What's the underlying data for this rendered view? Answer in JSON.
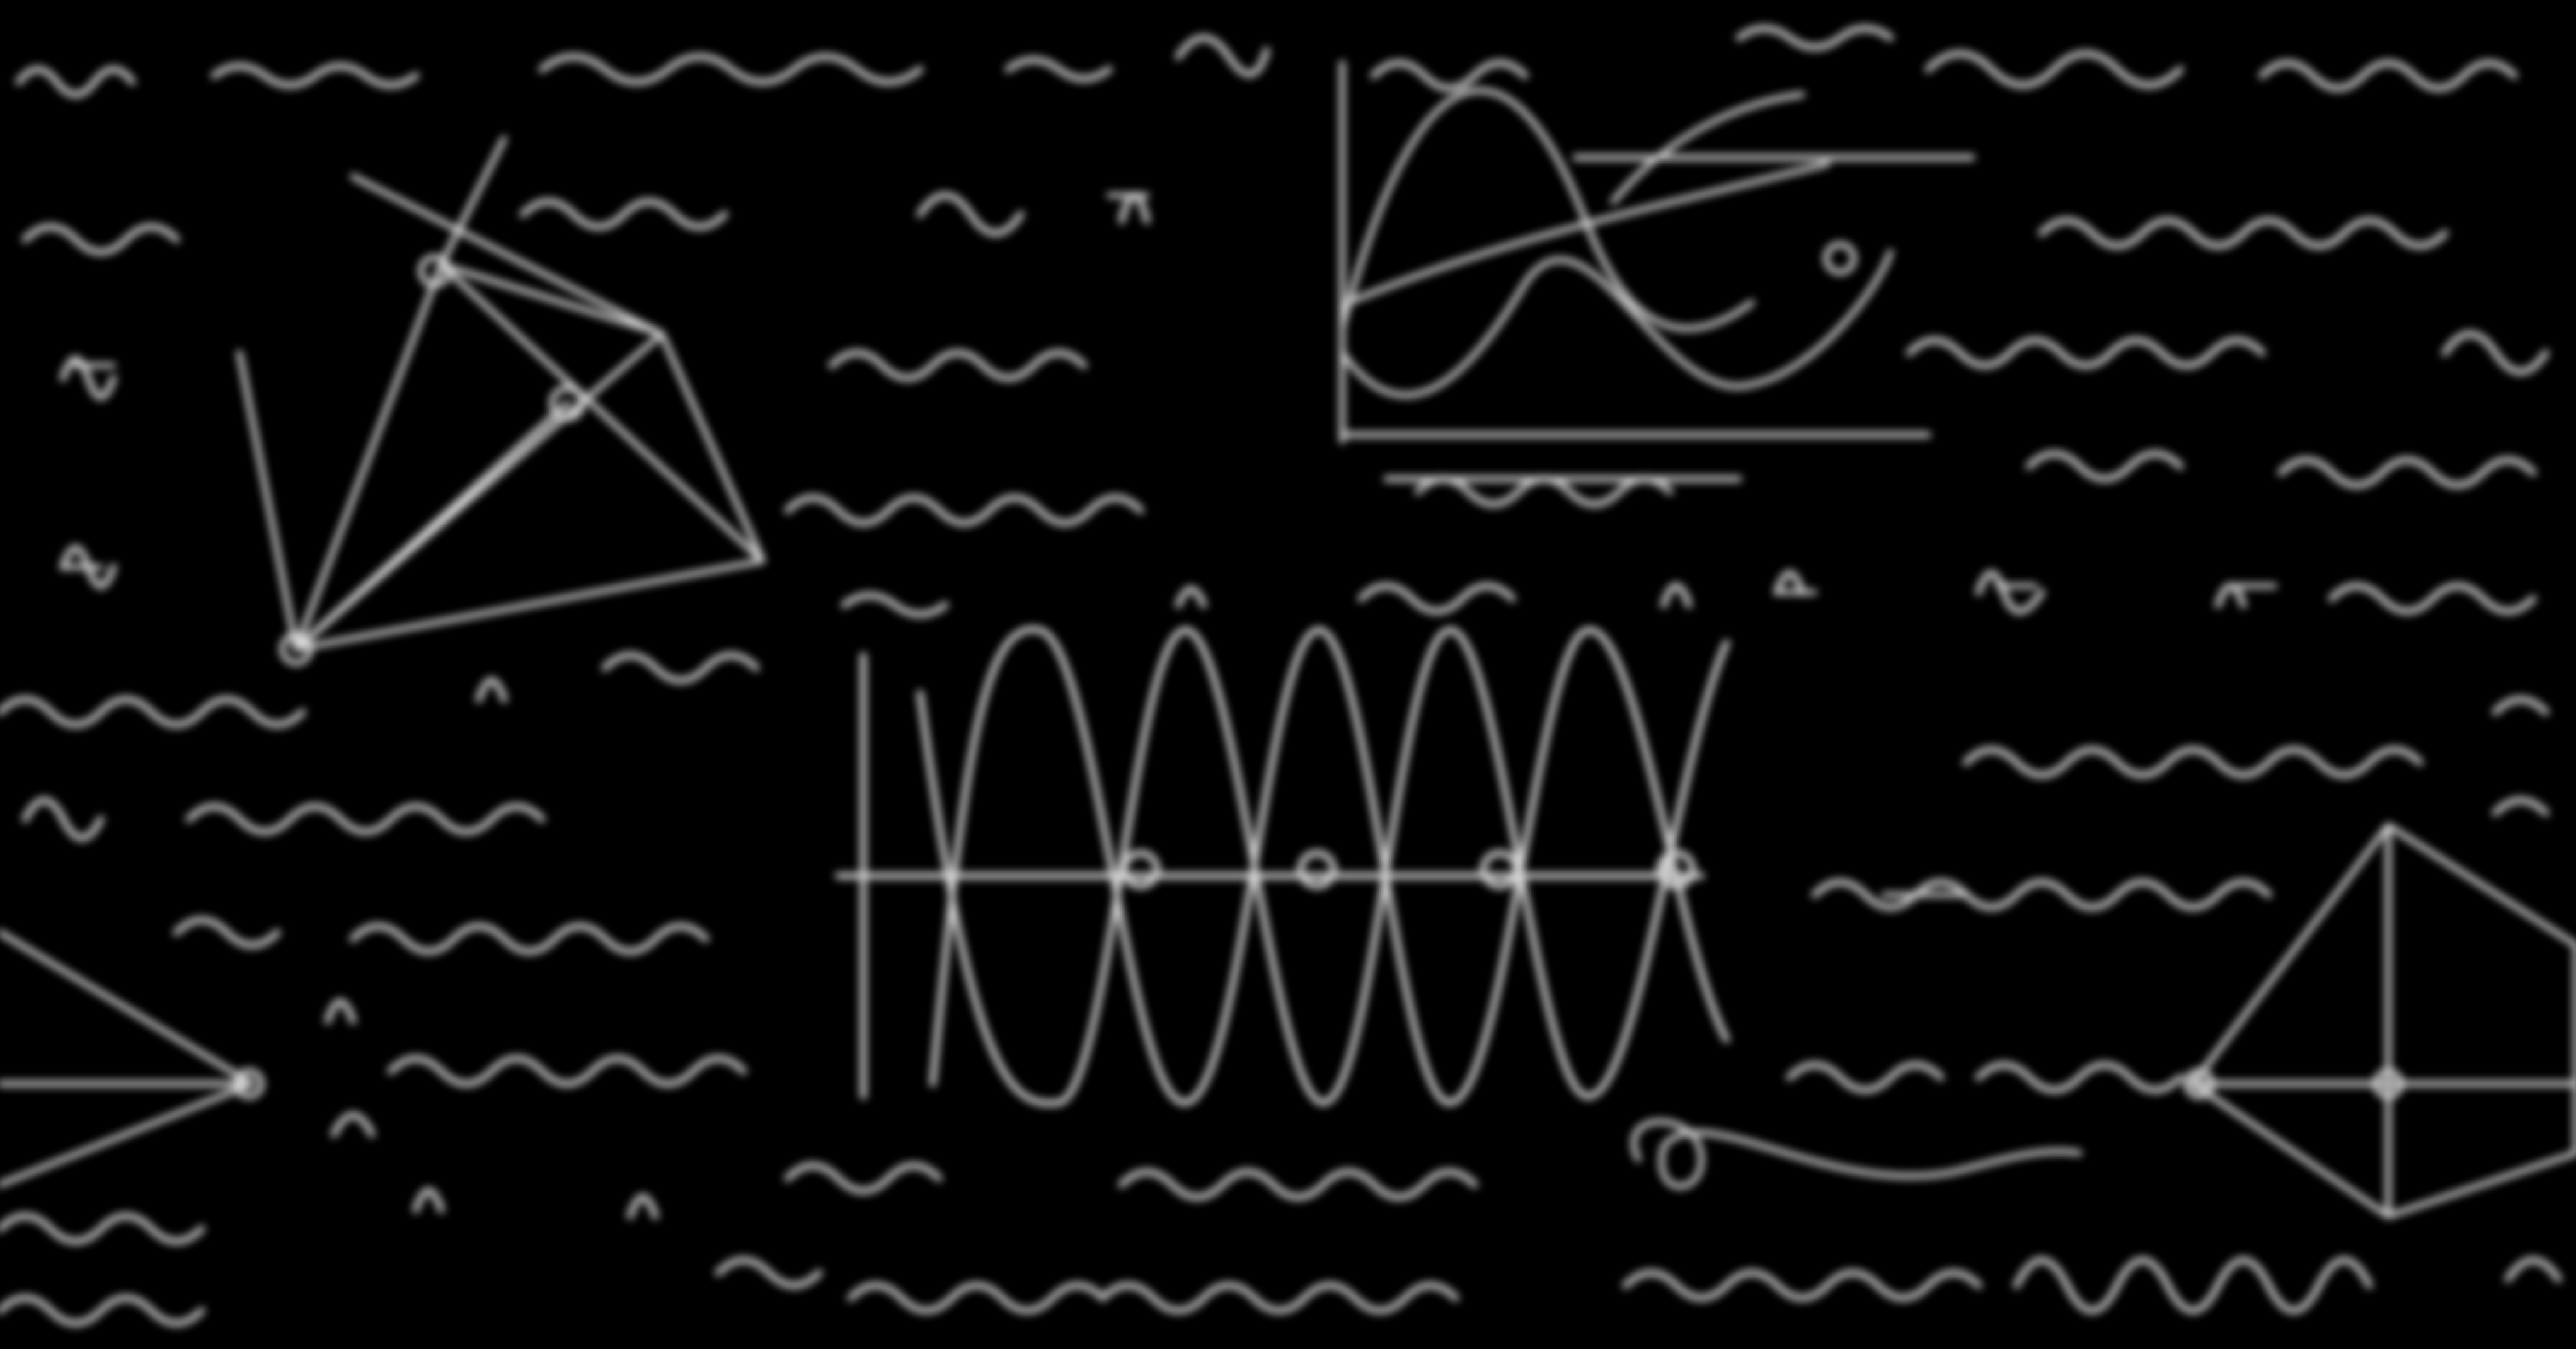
{
  "scene": {
    "description_kind": "blurred-chalkboard-math-background",
    "background_color": "#000000",
    "ink_color": "#ffffff",
    "ink_opacity": 0.85,
    "blur": "heavy"
  }
}
